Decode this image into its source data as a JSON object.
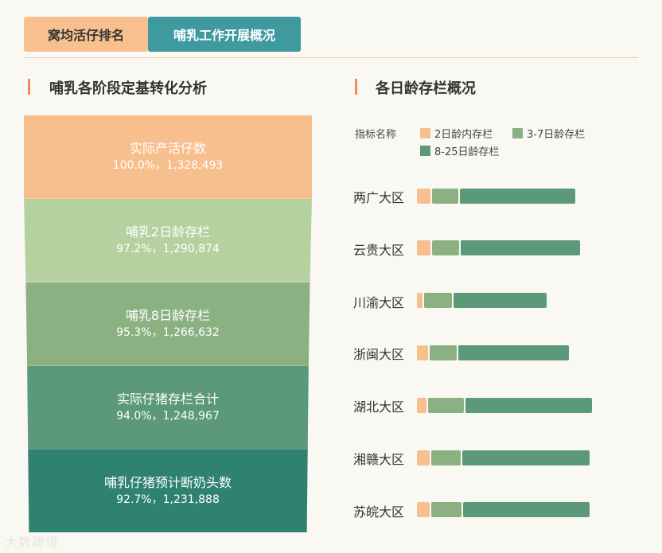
{
  "tabs": [
    {
      "label": "窝均活仔排名"
    },
    {
      "label": "哺乳工作开展概况"
    }
  ],
  "left_title": "哺乳各阶段定基转化分析",
  "right_title": "各日龄存栏概况",
  "legend_label": "指标名称",
  "colors": {
    "c1": "#f8bf8e",
    "c2": "#8bb183",
    "c3": "#5b9979",
    "funnel": [
      "#f8bf8e",
      "#b5d19f",
      "#8bb183",
      "#5b9979",
      "#2f8270"
    ]
  },
  "chart_data": [
    {
      "type": "funnel",
      "title": "哺乳各阶段定基转化分析",
      "stages": [
        {
          "name": "实际产活仔数",
          "value": "100.0%，1,328,493",
          "percent": 100.0,
          "count": 1328493
        },
        {
          "name": "哺乳2日龄存栏",
          "value": "97.2%，1,290,874",
          "percent": 97.2,
          "count": 1290874
        },
        {
          "name": "哺乳8日龄存栏",
          "value": "95.3%，1,266,632",
          "percent": 95.3,
          "count": 1266632
        },
        {
          "name": "实际仔猪存栏合计",
          "value": "94.0%，1,248,967",
          "percent": 94.0,
          "count": 1248967
        },
        {
          "name": "哺乳仔猪预计断奶头数",
          "value": "92.7%，1,231,888",
          "percent": 92.7,
          "count": 1231888
        }
      ]
    },
    {
      "type": "bar",
      "stacked": true,
      "orientation": "horizontal",
      "title": "各日龄存栏概况",
      "categories": [
        "两广大区",
        "云贵大区",
        "川渝大区",
        "浙闽大区",
        "湖北大区",
        "湘赣大区",
        "苏皖大区"
      ],
      "series": [
        {
          "name": "2日龄内存栏",
          "values": [
            17,
            17,
            7,
            14,
            12,
            16,
            16
          ]
        },
        {
          "name": "3-7日龄存栏",
          "values": [
            33,
            34,
            35,
            34,
            45,
            37,
            38
          ]
        },
        {
          "name": "8-25日龄存栏",
          "values": [
            145,
            150,
            117,
            139,
            159,
            160,
            159
          ]
        }
      ]
    }
  ]
}
